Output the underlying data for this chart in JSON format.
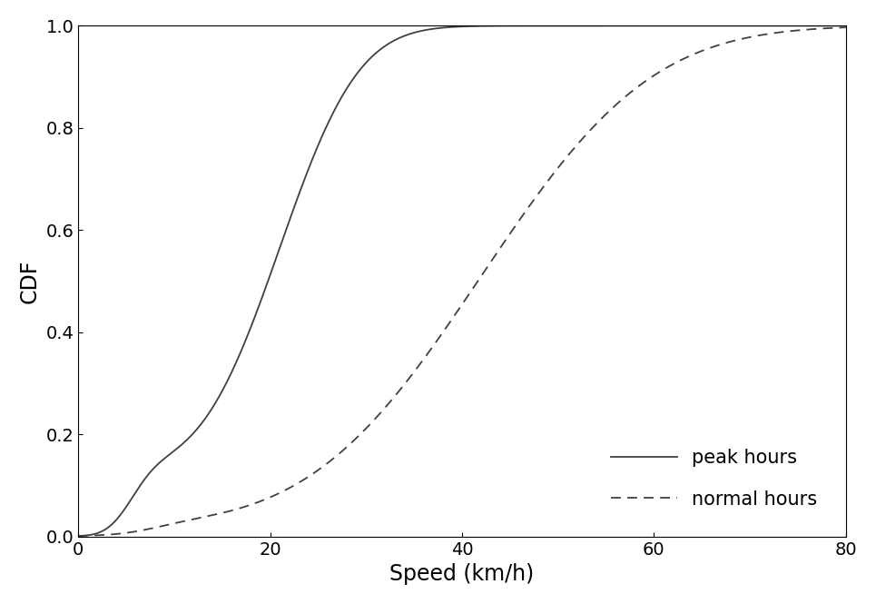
{
  "title": "",
  "xlabel": "Speed (km/h)",
  "ylabel": "CDF",
  "xlim": [
    0,
    80
  ],
  "ylim": [
    0,
    1
  ],
  "xticks": [
    0,
    20,
    40,
    60,
    80
  ],
  "yticks": [
    0,
    0.2,
    0.4,
    0.6,
    0.8,
    1.0
  ],
  "peak_hours": {
    "label": "peak hours",
    "linestyle": "solid",
    "color": "#404040",
    "linewidth": 1.3
  },
  "normal_hours": {
    "label": "normal hours",
    "linestyle": "dashed",
    "color": "#404040",
    "linewidth": 1.3,
    "dash_pattern": [
      6,
      4
    ]
  },
  "legend_loc": "lower right",
  "legend_fontsize": 15,
  "axis_fontsize": 17,
  "tick_fontsize": 14,
  "background_color": "#ffffff",
  "figure_facecolor": "#ffffff"
}
